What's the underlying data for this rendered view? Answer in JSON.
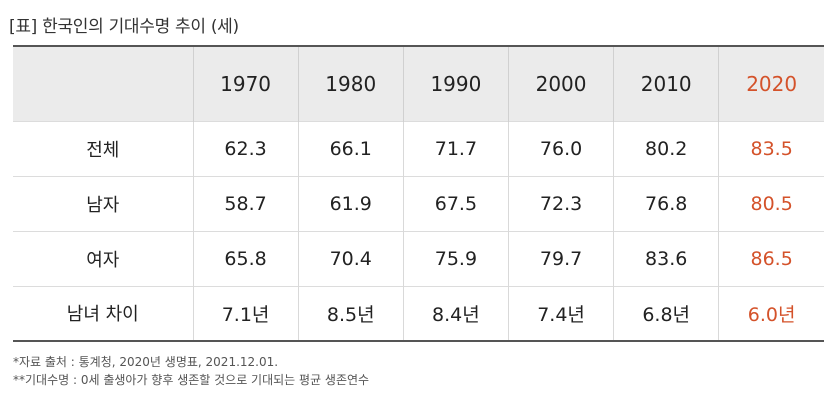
{
  "title": "[표] 한국인의 기대수명 추이 (세)",
  "table": {
    "headers": [
      "",
      "1970",
      "1980",
      "1990",
      "2000",
      "2010",
      "2020"
    ],
    "rows": [
      {
        "label": "전체",
        "cells": [
          "62.3",
          "66.1",
          "71.7",
          "76.0",
          "80.2",
          "83.5"
        ]
      },
      {
        "label": "남자",
        "cells": [
          "58.7",
          "61.9",
          "67.5",
          "72.3",
          "76.8",
          "80.5"
        ]
      },
      {
        "label": "여자",
        "cells": [
          "65.8",
          "70.4",
          "75.9",
          "79.7",
          "83.6",
          "86.5"
        ]
      },
      {
        "label": "남녀 차이",
        "cells": [
          "7.1년",
          "8.5년",
          "8.4년",
          "7.4년",
          "6.8년",
          "6.0년"
        ]
      }
    ]
  },
  "notes": [
    "*자료 출처 : 통계청, 2020년 생명표, 2021.12.01.",
    "**기대수명 : 0세 출생아가 향후 생존할 것으로 기대되는 평균 생존연수"
  ],
  "colors": {
    "highlight": "#d4522a",
    "header_bg": "#ebebeb"
  }
}
